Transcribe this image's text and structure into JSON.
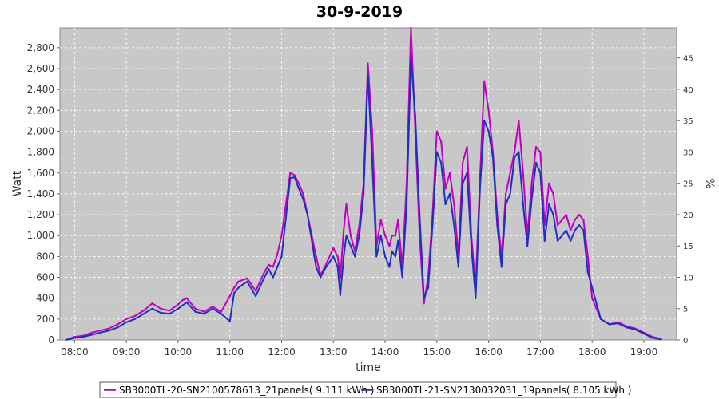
{
  "chart_data": {
    "type": "line",
    "title": "30-9-2019",
    "xlabel": "time",
    "ylabel": "Watt",
    "ylabel_right": "%",
    "x_ticks": [
      "08:00",
      "09:00",
      "10:00",
      "11:00",
      "12:00",
      "13:00",
      "14:00",
      "15:00",
      "16:00",
      "17:00",
      "18:00",
      "19:00"
    ],
    "y_ticks": [
      "0",
      "200",
      "400",
      "600",
      "800",
      "1,000",
      "1,200",
      "1,400",
      "1,600",
      "1,800",
      "2,000",
      "2,200",
      "2,400",
      "2,600",
      "2,800"
    ],
    "y_right_ticks": [
      "0",
      "5",
      "10",
      "15",
      "20",
      "25",
      "30",
      "35",
      "40",
      "45"
    ],
    "ylim": [
      0,
      2990
    ],
    "ylim_right": [
      0,
      49.8
    ],
    "xlim": [
      "07:43",
      "19:38"
    ],
    "grid": true,
    "legend_position": "bottom",
    "series": [
      {
        "name": "SB3000TL-20-SN2100578613_21panels( 9.111 kWh )",
        "color": "#c000c0",
        "x": [
          "07:50",
          "08:00",
          "08:10",
          "08:20",
          "08:30",
          "08:40",
          "08:50",
          "09:00",
          "09:10",
          "09:20",
          "09:30",
          "09:40",
          "09:50",
          "10:00",
          "10:05",
          "10:10",
          "10:20",
          "10:30",
          "10:40",
          "10:50",
          "11:00",
          "11:05",
          "11:10",
          "11:20",
          "11:30",
          "11:40",
          "11:45",
          "11:50",
          "11:55",
          "12:00",
          "12:10",
          "12:15",
          "12:20",
          "12:25",
          "12:30",
          "12:40",
          "12:45",
          "12:50",
          "13:00",
          "13:05",
          "13:08",
          "13:12",
          "13:15",
          "13:20",
          "13:25",
          "13:30",
          "13:35",
          "13:40",
          "13:45",
          "13:50",
          "13:55",
          "14:00",
          "14:05",
          "14:08",
          "14:12",
          "14:15",
          "14:20",
          "14:25",
          "14:30",
          "14:35",
          "14:40",
          "14:45",
          "14:50",
          "14:55",
          "15:00",
          "15:05",
          "15:10",
          "15:15",
          "15:20",
          "15:25",
          "15:30",
          "15:35",
          "15:40",
          "15:45",
          "15:50",
          "15:55",
          "16:00",
          "16:05",
          "16:10",
          "16:15",
          "16:20",
          "16:25",
          "16:30",
          "16:35",
          "16:40",
          "16:45",
          "16:50",
          "16:55",
          "17:00",
          "17:05",
          "17:10",
          "17:15",
          "17:20",
          "17:25",
          "17:30",
          "17:35",
          "17:40",
          "17:45",
          "17:50",
          "17:55",
          "18:00",
          "18:10",
          "18:20",
          "18:30",
          "18:40",
          "18:50",
          "19:00",
          "19:10",
          "19:20"
        ],
        "y": [
          0,
          30,
          40,
          70,
          90,
          110,
          150,
          200,
          230,
          280,
          350,
          300,
          280,
          340,
          380,
          400,
          300,
          270,
          320,
          270,
          420,
          500,
          560,
          590,
          470,
          650,
          720,
          700,
          820,
          1000,
          1600,
          1580,
          1500,
          1400,
          1200,
          800,
          620,
          700,
          880,
          800,
          600,
          1050,
          1300,
          1000,
          850,
          1100,
          1500,
          2650,
          2000,
          900,
          1150,
          1000,
          900,
          1000,
          1000,
          1150,
          700,
          1500,
          2990,
          2000,
          1000,
          350,
          600,
          1200,
          2000,
          1900,
          1450,
          1600,
          1300,
          800,
          1700,
          1850,
          1000,
          500,
          1550,
          2480,
          2200,
          1800,
          1200,
          800,
          1400,
          1600,
          1800,
          2100,
          1600,
          1000,
          1500,
          1850,
          1800,
          1100,
          1500,
          1400,
          1100,
          1150,
          1200,
          1050,
          1150,
          1200,
          1150,
          800,
          400,
          200,
          150,
          170,
          130,
          110,
          70,
          30,
          10
        ]
      },
      {
        "name": "SB3000TL-21-SN2130032031_19panels( 8.105 kWh )",
        "color": "#1f2fbf",
        "x": [
          "07:50",
          "08:00",
          "08:10",
          "08:20",
          "08:30",
          "08:40",
          "08:50",
          "09:00",
          "09:10",
          "09:20",
          "09:30",
          "09:40",
          "09:50",
          "10:00",
          "10:05",
          "10:10",
          "10:20",
          "10:30",
          "10:40",
          "10:50",
          "11:00",
          "11:05",
          "11:10",
          "11:20",
          "11:30",
          "11:40",
          "11:45",
          "11:50",
          "11:55",
          "12:00",
          "12:10",
          "12:15",
          "12:20",
          "12:25",
          "12:30",
          "12:40",
          "12:45",
          "12:50",
          "13:00",
          "13:05",
          "13:08",
          "13:12",
          "13:15",
          "13:20",
          "13:25",
          "13:30",
          "13:35",
          "13:40",
          "13:45",
          "13:50",
          "13:55",
          "14:00",
          "14:05",
          "14:08",
          "14:12",
          "14:15",
          "14:20",
          "14:25",
          "14:30",
          "14:35",
          "14:40",
          "14:45",
          "14:50",
          "14:55",
          "15:00",
          "15:05",
          "15:10",
          "15:15",
          "15:20",
          "15:25",
          "15:30",
          "15:35",
          "15:40",
          "15:45",
          "15:50",
          "15:55",
          "16:00",
          "16:05",
          "16:10",
          "16:15",
          "16:20",
          "16:25",
          "16:30",
          "16:35",
          "16:40",
          "16:45",
          "16:50",
          "16:55",
          "17:00",
          "17:05",
          "17:10",
          "17:15",
          "17:20",
          "17:25",
          "17:30",
          "17:35",
          "17:40",
          "17:45",
          "17:50",
          "17:55",
          "18:00",
          "18:10",
          "18:20",
          "18:30",
          "18:40",
          "18:50",
          "19:00",
          "19:10",
          "19:20"
        ],
        "y": [
          0,
          20,
          30,
          50,
          70,
          90,
          120,
          170,
          200,
          250,
          300,
          260,
          250,
          300,
          330,
          360,
          270,
          250,
          300,
          250,
          180,
          450,
          500,
          560,
          420,
          600,
          680,
          600,
          700,
          800,
          1550,
          1560,
          1450,
          1350,
          1200,
          700,
          600,
          680,
          800,
          700,
          430,
          800,
          1000,
          900,
          800,
          1000,
          1400,
          2550,
          1700,
          800,
          1000,
          800,
          700,
          850,
          800,
          950,
          600,
          1300,
          2700,
          2150,
          1200,
          400,
          500,
          1100,
          1800,
          1700,
          1300,
          1400,
          1100,
          700,
          1500,
          1600,
          900,
          400,
          1450,
          2100,
          2000,
          1750,
          1100,
          700,
          1300,
          1400,
          1750,
          1800,
          1300,
          900,
          1350,
          1700,
          1600,
          950,
          1300,
          1200,
          950,
          1000,
          1050,
          950,
          1050,
          1100,
          1050,
          650,
          500,
          200,
          150,
          160,
          120,
          100,
          60,
          20,
          5
        ]
      }
    ]
  }
}
